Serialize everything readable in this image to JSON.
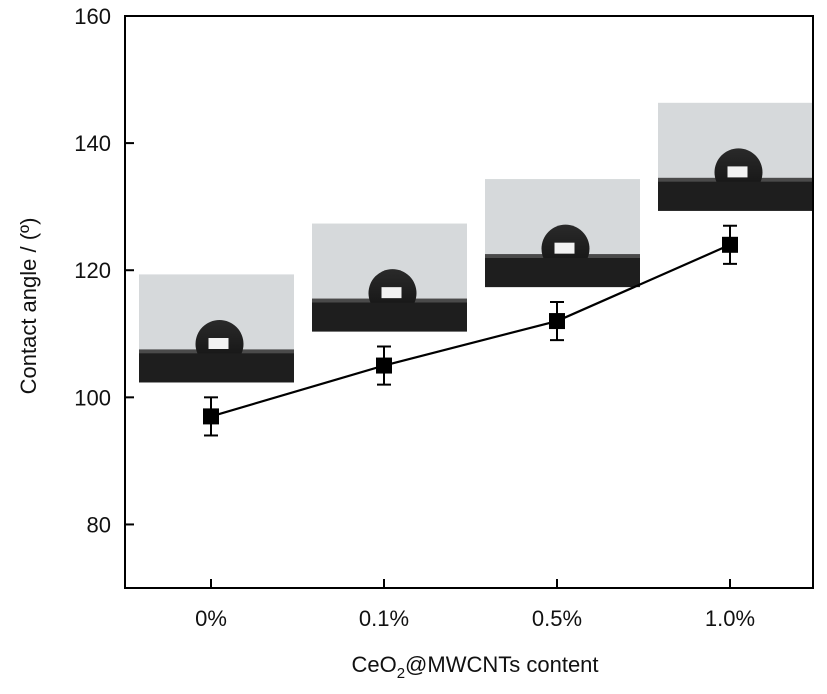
{
  "chart_data": {
    "type": "line",
    "categories": [
      "0%",
      "0.1%",
      "0.5%",
      "1.0%"
    ],
    "series": [
      {
        "name": "",
        "values": [
          97,
          105,
          112,
          124
        ],
        "errors": [
          3,
          3,
          3,
          3
        ]
      }
    ],
    "xlabel_main": "CeO",
    "xlabel_sub": "2",
    "xlabel_rest": "@MWCNTs content",
    "ylabel": "Contact angle / (º)",
    "ylim": [
      70,
      160
    ],
    "yticks": [
      80,
      100,
      120,
      140,
      160
    ],
    "grid": false,
    "marker": "square",
    "color": "#000000",
    "insets": [
      {
        "category": "0%",
        "content": "water-droplet-photo"
      },
      {
        "category": "0.1%",
        "content": "water-droplet-photo"
      },
      {
        "category": "0.5%",
        "content": "water-droplet-photo"
      },
      {
        "category": "1.0%",
        "content": "water-droplet-photo"
      }
    ]
  }
}
